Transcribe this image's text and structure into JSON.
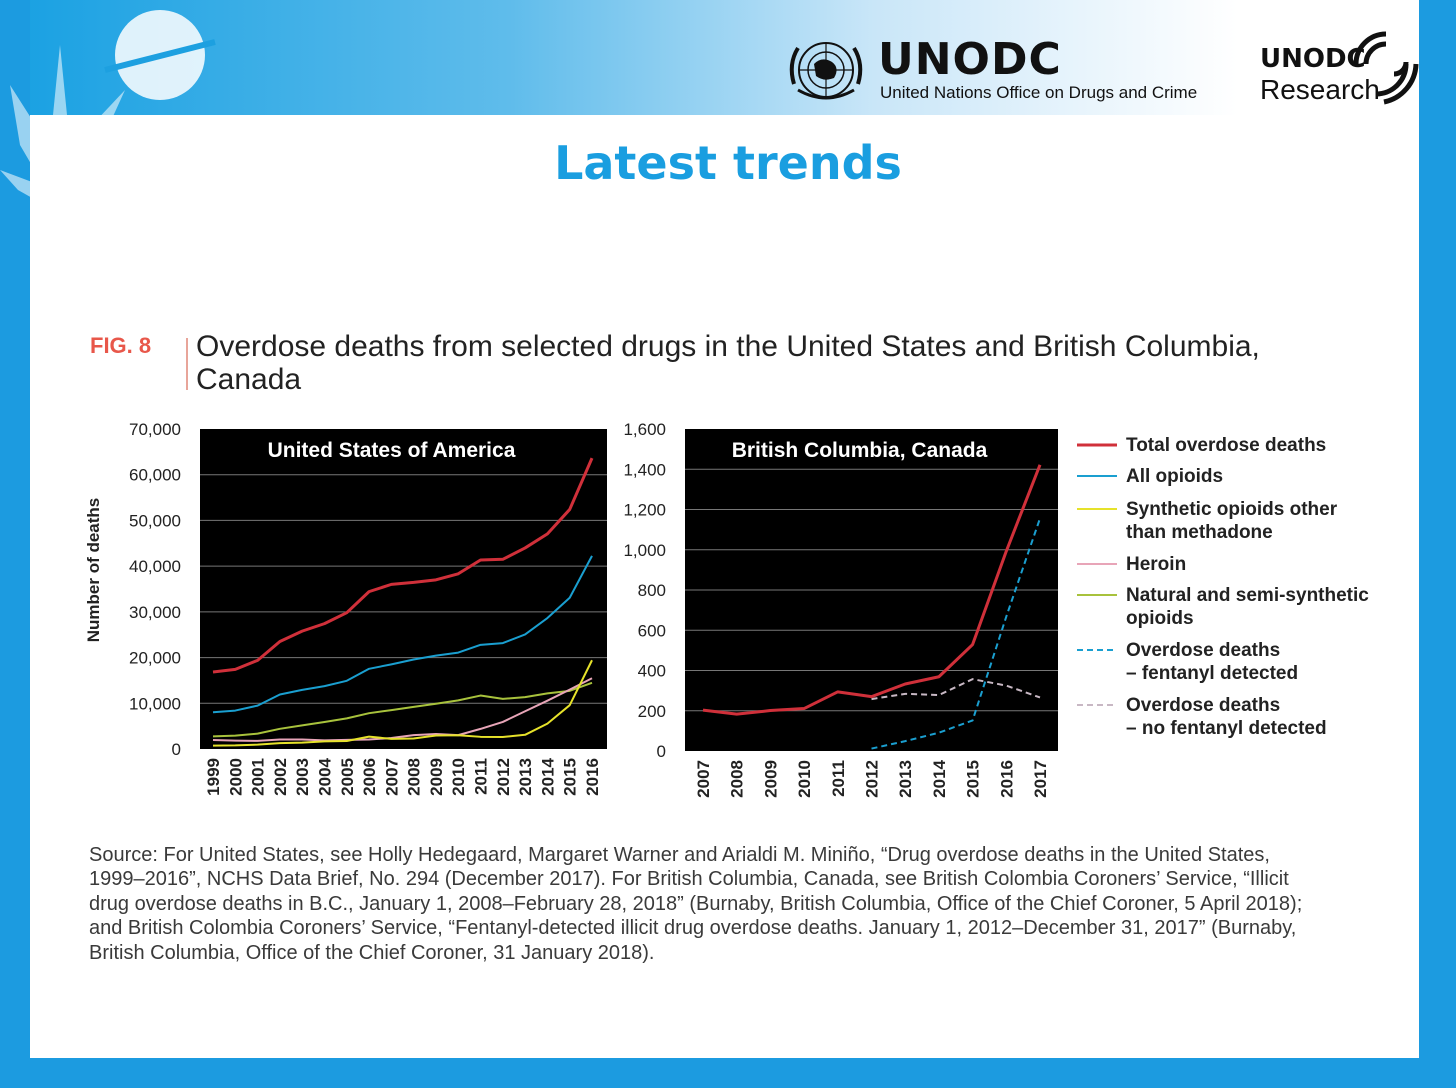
{
  "header": {
    "unodc_title": "UNODC",
    "unodc_subtitle": "United Nations Office on Drugs and Crime",
    "research_logo_top": "UNODC",
    "research_logo_bottom": "Research"
  },
  "page_title": "Latest trends",
  "figure": {
    "label": "FIG. 8",
    "title": "Overdose deaths from selected drugs in the United States and British Columbia, Canada",
    "source": "Source: For United States, see Holly Hedegaard, Margaret Warner and Arialdi M. Miniño, “Drug overdose deaths in the United States, 1999–2016”, NCHS Data Brief, No. 294 (December 2017). For British Columbia, Canada, see British Colombia Coroners’ Service, “Illicit drug overdose deaths in B.C., January 1, 2008–February 28, 2018” (Burnaby, British Columbia, Office of the Chief Coroner, 5 April 2018); and British Colombia Coroners’ Service, “Fentanyl-detected illicit drug overdose deaths. January 1, 2012–December 31, 2017” (Burnaby, British Columbia, Office of the Chief Coroner, 31 January 2018)."
  },
  "colors": {
    "total": "#d0303a",
    "all_opioids": "#1a9fd0",
    "synthetic": "#e6e22a",
    "heroin": "#e8a5b8",
    "natural": "#a8c23c",
    "fentanyl": "#1a9fd0",
    "no_fentanyl": "#c8b8c4",
    "accent": "#1a9ee0"
  },
  "legend": [
    {
      "label": "Total overdose deaths",
      "color": "#d0303a",
      "dashed": false
    },
    {
      "label": "All opioids",
      "color": "#1a9fd0",
      "dashed": false
    },
    {
      "label": "Synthetic opioids other than methadone",
      "color": "#e6e22a",
      "dashed": false
    },
    {
      "label": "Heroin",
      "color": "#e8a5b8",
      "dashed": false
    },
    {
      "label": "Natural and semi-synthetic opioids",
      "color": "#a8c23c",
      "dashed": false
    },
    {
      "label": "Overdose deaths – fentanyl detected",
      "color": "#1a9fd0",
      "dashed": true
    },
    {
      "label": "Overdose deaths – no fentanyl detected",
      "color": "#c8b8c4",
      "dashed": true
    }
  ],
  "chart_data": [
    {
      "type": "line",
      "title": "United States of America",
      "ylabel": "Number of deaths",
      "ylim": [
        0,
        70000
      ],
      "yticks": [
        "0",
        "10,000",
        "20,000",
        "30,000",
        "40,000",
        "50,000",
        "60,000",
        "70,000"
      ],
      "ytick_values": [
        0,
        10000,
        20000,
        30000,
        40000,
        50000,
        60000,
        70000
      ],
      "x": [
        "1999",
        "2000",
        "2001",
        "2002",
        "2003",
        "2004",
        "2005",
        "2006",
        "2007",
        "2008",
        "2009",
        "2010",
        "2011",
        "2012",
        "2013",
        "2014",
        "2015",
        "2016"
      ],
      "grid": true,
      "series": [
        {
          "name": "Total overdose deaths",
          "values": [
            16849,
            17415,
            19394,
            23518,
            25785,
            27424,
            29813,
            34425,
            36010,
            36450,
            37004,
            38329,
            41340,
            41502,
            43982,
            47055,
            52404,
            63632
          ]
        },
        {
          "name": "All opioids",
          "values": [
            8050,
            8407,
            9496,
            11920,
            12940,
            13756,
            14918,
            17545,
            18516,
            19582,
            20422,
            21089,
            22784,
            23166,
            25052,
            28647,
            33091,
            42249
          ]
        },
        {
          "name": "Synthetic opioids other than methadone",
          "values": [
            730,
            782,
            957,
            1295,
            1400,
            1664,
            1742,
            2707,
            2213,
            2306,
            2946,
            3007,
            2666,
            2628,
            3105,
            5544,
            9580,
            19413
          ]
        },
        {
          "name": "Heroin",
          "values": [
            1960,
            1842,
            1779,
            2089,
            2080,
            1878,
            2009,
            2088,
            2399,
            3041,
            3278,
            3036,
            4397,
            5925,
            8257,
            10574,
            12989,
            15469
          ]
        },
        {
          "name": "Natural and semi-synthetic opioids",
          "values": [
            2749,
            2917,
            3359,
            4416,
            5162,
            5915,
            6692,
            7834,
            8513,
            9212,
            9906,
            10637,
            11693,
            10959,
            11345,
            12159,
            12727,
            14487
          ]
        }
      ]
    },
    {
      "type": "line",
      "title": "British Columbia, Canada",
      "ylim": [
        0,
        1600
      ],
      "yticks": [
        "0",
        "200",
        "400",
        "600",
        "800",
        "1,000",
        "1,200",
        "1,400",
        "1,600"
      ],
      "ytick_values": [
        0,
        200,
        400,
        600,
        800,
        1000,
        1200,
        1400,
        1600
      ],
      "x": [
        "2007",
        "2008",
        "2009",
        "2010",
        "2011",
        "2012",
        "2013",
        "2014",
        "2015",
        "2016",
        "2017"
      ],
      "grid": true,
      "series": [
        {
          "name": "Total overdose deaths",
          "values": [
            203,
            183,
            201,
            211,
            294,
            270,
            333,
            369,
            529,
            993,
            1422
          ]
        },
        {
          "name": "Overdose deaths – fentanyl detected",
          "values": [
            null,
            null,
            null,
            null,
            null,
            12,
            49,
            91,
            152,
            668,
            1156
          ]
        },
        {
          "name": "Overdose deaths – no fentanyl detected",
          "values": [
            null,
            null,
            null,
            null,
            null,
            258,
            284,
            278,
            357,
            325,
            266
          ]
        }
      ]
    }
  ]
}
